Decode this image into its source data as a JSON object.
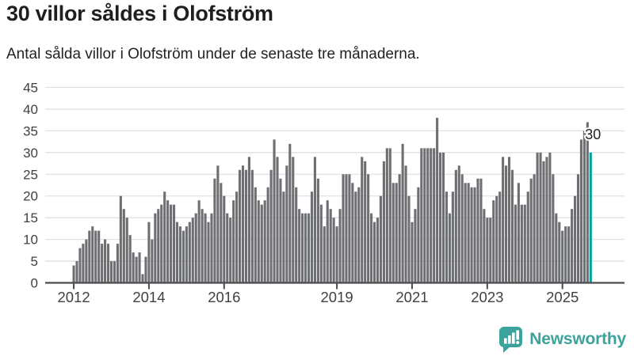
{
  "header": {
    "title": "30 villor såldes i Olofström",
    "subtitle": "Antal sålda villor i Olofström under de senaste tre månaderna."
  },
  "chart_data": {
    "type": "bar",
    "title": "30 villor såldes i Olofström",
    "subtitle": "Antal sålda villor i Olofström under de senaste tre månaderna.",
    "ylabel": "",
    "xlabel": "",
    "ylim": [
      0,
      45
    ],
    "y_ticks": [
      0,
      5,
      10,
      15,
      20,
      25,
      30,
      35,
      40,
      45
    ],
    "x_tick_labels": [
      "2012",
      "2014",
      "2016",
      "2019",
      "2021",
      "2023",
      "2025"
    ],
    "x_tick_years": [
      2012,
      2014,
      2016,
      2019,
      2021,
      2023,
      2025
    ],
    "grid": true,
    "legend": "none",
    "frequency": "monthly",
    "years": [
      {
        "year": 2012,
        "values": [
          4,
          5,
          8,
          9,
          10,
          12,
          13,
          12,
          12,
          9,
          10,
          9
        ]
      },
      {
        "year": 2013,
        "values": [
          5,
          5,
          9,
          20,
          17,
          15,
          11,
          7,
          6,
          7,
          2,
          6
        ]
      },
      {
        "year": 2014,
        "values": [
          14,
          10,
          16,
          17,
          18,
          21,
          19,
          18,
          18,
          14,
          13,
          12
        ]
      },
      {
        "year": 2015,
        "values": [
          13,
          14,
          15,
          16,
          19,
          17,
          16,
          14,
          16,
          24,
          27,
          23
        ]
      },
      {
        "year": 2016,
        "values": [
          20,
          16,
          15,
          19,
          21,
          26,
          27,
          26,
          29,
          26,
          22,
          19
        ]
      },
      {
        "year": 2017,
        "values": [
          18,
          19,
          22,
          26,
          33,
          29,
          24,
          21,
          27,
          32,
          29,
          22
        ]
      },
      {
        "year": 2018,
        "values": [
          17,
          16,
          16,
          16,
          21,
          29,
          24,
          18,
          13,
          19,
          17,
          15
        ]
      },
      {
        "year": 2019,
        "values": [
          13,
          17,
          25,
          25,
          25,
          23,
          21,
          22,
          29,
          28,
          25,
          16
        ]
      },
      {
        "year": 2020,
        "values": [
          14,
          15,
          20,
          28,
          31,
          31,
          23,
          23,
          25,
          32,
          27,
          20
        ]
      },
      {
        "year": 2021,
        "values": [
          14,
          17,
          22,
          31,
          31,
          31,
          31,
          31,
          38,
          30,
          30,
          21
        ]
      },
      {
        "year": 2022,
        "values": [
          16,
          21,
          26,
          27,
          25,
          23,
          23,
          22,
          22,
          24,
          24,
          17
        ]
      },
      {
        "year": 2023,
        "values": [
          15,
          15,
          19,
          20,
          21,
          29,
          27,
          29,
          26,
          18,
          23,
          18
        ]
      },
      {
        "year": 2024,
        "values": [
          18,
          21,
          24,
          25,
          30,
          30,
          28,
          29,
          30,
          25,
          16,
          14
        ]
      },
      {
        "year": 2025,
        "values": [
          12,
          13,
          13,
          17,
          20,
          25,
          33,
          35,
          37,
          30
        ]
      }
    ],
    "highlight": {
      "position": "last",
      "value": 30,
      "annotation_text": "30"
    },
    "colors": {
      "bar": "#6E6F73",
      "highlight": "#00A39B",
      "grid": "#E1E1E1",
      "axis": "#4B4C4E",
      "tick_text": "#414141",
      "annotation_text": "#242424"
    }
  },
  "footer": {
    "brand": "Newsworthy",
    "brand_color": "#3BA39C"
  }
}
